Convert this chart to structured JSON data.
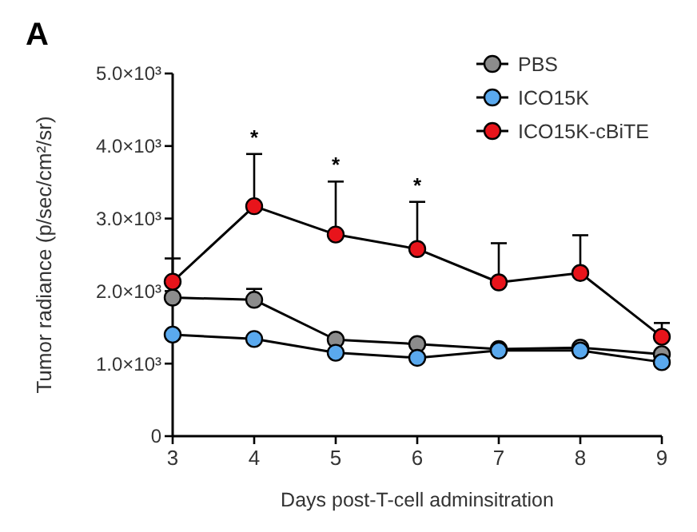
{
  "chart_data": {
    "type": "line",
    "xlabel": "Days post-T-cell adminsitration",
    "ylabel": "Tumor radiance (p/sec/cm²/sr)",
    "x": [
      3,
      4,
      5,
      6,
      7,
      8,
      9
    ],
    "series": [
      {
        "name": "PBS",
        "color": "#8c8c8c",
        "values": [
          1910,
          1880,
          1330,
          1270,
          1200,
          1220,
          1130
        ],
        "errors": [
          null,
          [
            1880,
            2030
          ],
          null,
          null,
          null,
          null,
          null
        ]
      },
      {
        "name": "ICO15K",
        "color": "#5aa9ee",
        "values": [
          1400,
          1340,
          1150,
          1080,
          1180,
          1180,
          1020
        ]
      },
      {
        "name": "ICO15K-cBiTE",
        "color": "#e8141b",
        "values": [
          2130,
          3170,
          2780,
          2580,
          2120,
          2250,
          1370
        ],
        "errors": [
          [
            2130,
            2450
          ],
          [
            3170,
            3890
          ],
          [
            2780,
            3510
          ],
          [
            2580,
            3230
          ],
          [
            2120,
            2660
          ],
          [
            2250,
            2770
          ],
          [
            1370,
            1560
          ]
        ]
      }
    ],
    "xlim": [
      3,
      9
    ],
    "xticks": [
      3,
      4,
      5,
      6,
      7,
      8,
      9
    ],
    "ylim": [
      0,
      5000
    ],
    "yticks": [
      {
        "value": 0,
        "label": "0"
      },
      {
        "value": 1000,
        "label": "1.0×10³"
      },
      {
        "value": 2000,
        "label": "2.0×10³"
      },
      {
        "value": 3000,
        "label": "3.0×10³"
      },
      {
        "value": 4000,
        "label": "4.0×10³"
      },
      {
        "value": 5000,
        "label": "5.0×10³"
      }
    ],
    "annotations": [
      "A",
      {
        "text": "*",
        "x": 4,
        "y": 3890
      },
      {
        "text": "*",
        "x": 5,
        "y": 3510
      },
      {
        "text": "*",
        "x": 6,
        "y": 3230
      }
    ],
    "marker": "circle",
    "legend": "top right",
    "grid": false
  }
}
